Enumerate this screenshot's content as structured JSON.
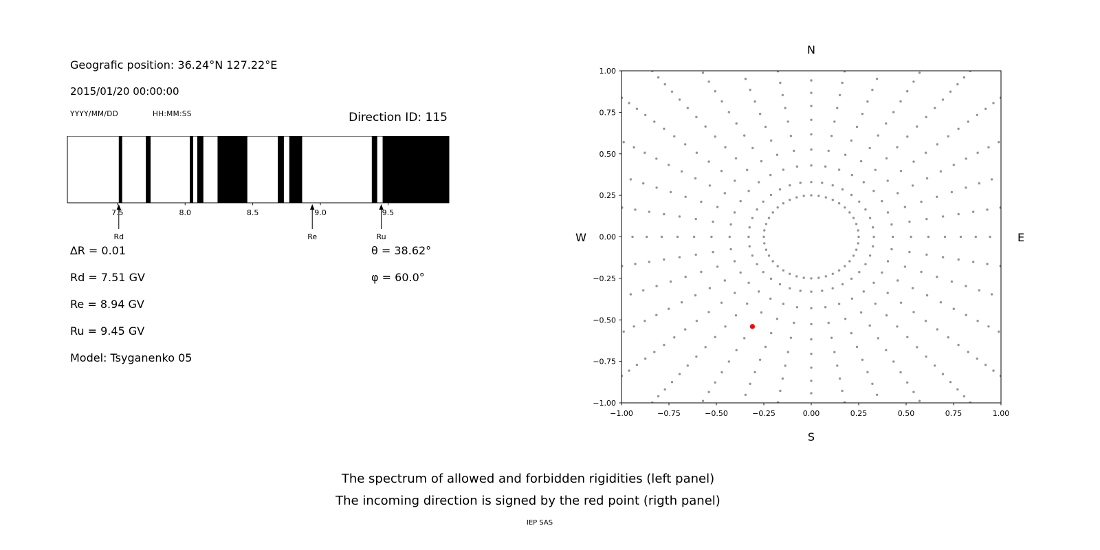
{
  "header": {
    "geo_position": "Geografic position: 36.24°N 127.22°E",
    "datetime": "2015/01/20 00:00:00",
    "date_format_label": "YYYY/MM/DD",
    "time_format_label": "HH:MM:SS",
    "direction_id": "Direction ID: 115"
  },
  "parameters": {
    "delta_r": "∆R = 0.01",
    "rd": "Rd = 7.51 GV",
    "re": "Re = 8.94 GV",
    "ru": "Ru = 9.45 GV",
    "model": "Model: Tsyganenko 05",
    "theta": "θ = 38.62°",
    "phi": "φ = 60.0°"
  },
  "captions": {
    "line1": "The spectrum of allowed and forbidden rigidities (left panel)",
    "line2": "The incoming direction is signed by the red point (rigth panel)",
    "credit": "IEP SAS"
  },
  "chart_data": [
    {
      "id": "rigidity-spectrum",
      "type": "bar",
      "description": "Barcode-style spectrum: black bands = allowed rigidities, white = forbidden",
      "xlim": [
        7.13,
        9.95
      ],
      "band_color": "#000000",
      "background": "#ffffff",
      "xticks": [
        {
          "v": 7.5,
          "label": "7.5"
        },
        {
          "v": 8.0,
          "label": "8.0"
        },
        {
          "v": 8.5,
          "label": "8.5"
        },
        {
          "v": 9.0,
          "label": "9.0"
        },
        {
          "v": 9.5,
          "label": "9.5"
        }
      ],
      "allowed_bands_gv": [
        [
          7.51,
          7.535
        ],
        [
          7.71,
          7.745
        ],
        [
          8.035,
          8.06
        ],
        [
          8.09,
          8.135
        ],
        [
          8.24,
          8.46
        ],
        [
          8.685,
          8.73
        ],
        [
          8.77,
          8.865
        ],
        [
          9.38,
          9.42
        ],
        [
          9.46,
          9.95
        ]
      ],
      "markers": [
        {
          "label": "Rd",
          "value": 7.51
        },
        {
          "label": "Re",
          "value": 8.94
        },
        {
          "label": "Ru",
          "value": 9.45
        }
      ]
    },
    {
      "id": "direction-map",
      "type": "scatter",
      "description": "Asymptotic direction grid of gray dots (inner ring + radial dotted spokes); red point marks incoming direction",
      "xlim": [
        -1,
        1
      ],
      "ylim": [
        -1,
        1
      ],
      "compass": {
        "top": "N",
        "bottom": "S",
        "left": "W",
        "right": "E"
      },
      "xticks": [
        {
          "v": -1.0,
          "label": "−1.00"
        },
        {
          "v": -0.75,
          "label": "−0.75"
        },
        {
          "v": -0.5,
          "label": "−0.50"
        },
        {
          "v": -0.25,
          "label": "−0.25"
        },
        {
          "v": 0.0,
          "label": "0.00"
        },
        {
          "v": 0.25,
          "label": "0.25"
        },
        {
          "v": 0.5,
          "label": "0.50"
        },
        {
          "v": 0.75,
          "label": "0.75"
        },
        {
          "v": 1.0,
          "label": "1.00"
        }
      ],
      "yticks": [
        {
          "v": 1.0,
          "label": "1.00"
        },
        {
          "v": 0.75,
          "label": "0.75"
        },
        {
          "v": 0.5,
          "label": "0.50"
        },
        {
          "v": 0.25,
          "label": "0.25"
        },
        {
          "v": 0.0,
          "label": "0.00"
        },
        {
          "v": -0.25,
          "label": "−0.25"
        },
        {
          "v": -0.5,
          "label": "−0.50"
        },
        {
          "v": -0.75,
          "label": "−0.75"
        },
        {
          "v": -1.0,
          "label": "−1.00"
        }
      ],
      "gray_dots": {
        "color": "#949494",
        "dot_radius_px": 1.7,
        "ring": {
          "radius": 0.25,
          "count": 40
        },
        "spokes": {
          "count": 36,
          "angle_offset_deg": 0,
          "start_radius": 0.33,
          "dots_per_spoke": 22,
          "spacing_start": 0.1,
          "spacing_end": 0.012
        }
      },
      "red_point": {
        "x": -0.31,
        "y": -0.54,
        "color": "#ff0000",
        "radius_px": 3.6
      }
    }
  ]
}
